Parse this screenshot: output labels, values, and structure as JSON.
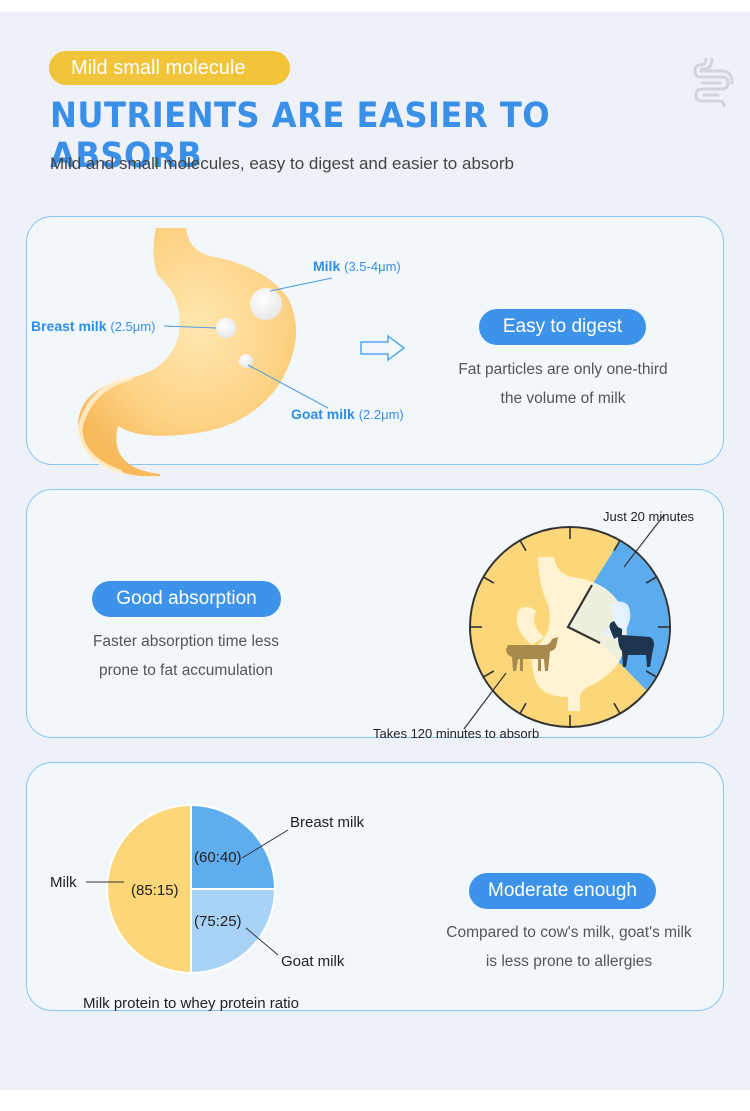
{
  "header": {
    "tag": "Mild small molecule",
    "title": "NUTRIENTS ARE EASIER TO ABSORB",
    "subtitle": "Mild and small molecules, easy to digest and easier to absorb",
    "icon": "intestine-icon"
  },
  "digest": {
    "milk": {
      "name": "Milk",
      "size": "(3.5-4μm)"
    },
    "breast": {
      "name": "Breast milk",
      "size": "(2.5μm)"
    },
    "goat": {
      "name": "Goat milk",
      "size": "(2.2μm)"
    },
    "badge": "Easy to digest",
    "line1": "Fat particles are only one-third",
    "line2": "the volume of milk"
  },
  "absorption": {
    "badge": "Good absorption",
    "line1": "Faster absorption time less",
    "line2": "prone to fat accumulation",
    "short_label": "Just 20 minutes",
    "long_label": "Takes 120 minutes to absorb",
    "colors": {
      "long": "#fbd77a",
      "short": "#5aacef"
    }
  },
  "protein": {
    "badge": "Moderate enough",
    "line1": "Compared to cow's milk, goat's milk",
    "line2": "is less prone to allergies",
    "caption": "Milk protein to whey protein ratio"
  },
  "chart_data": {
    "type": "pie",
    "title": "Milk protein to whey protein ratio",
    "slices": [
      {
        "label": "Breast milk",
        "ratio": "(60:40)",
        "value": 25,
        "color": "#5fadee"
      },
      {
        "label": "Goat milk",
        "ratio": "(75:25)",
        "value": 25,
        "color": "#a8d3f7"
      },
      {
        "label": "Milk",
        "ratio": "(85:15)",
        "value": 50,
        "color": "#fbd77a"
      }
    ]
  }
}
